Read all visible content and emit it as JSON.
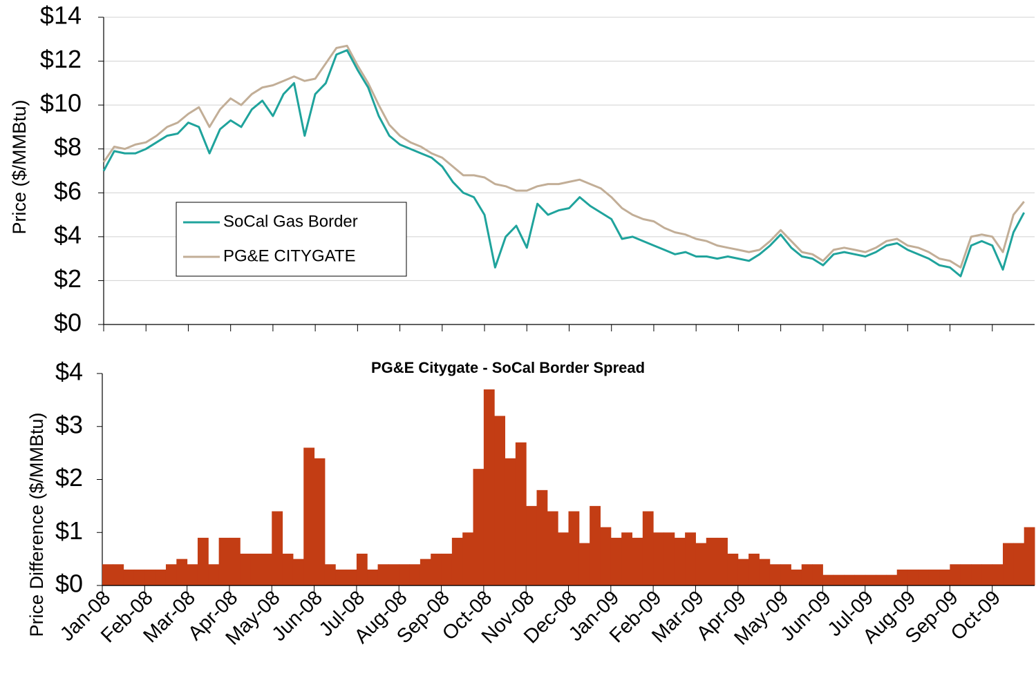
{
  "chart_data": [
    {
      "type": "line",
      "y_label": "Price ($/MMBtu)",
      "categories": [
        "Jan-08",
        null,
        null,
        null,
        "Feb-08",
        null,
        null,
        null,
        "Mar-08",
        null,
        null,
        null,
        "Apr-08",
        null,
        null,
        null,
        "May-08",
        null,
        null,
        null,
        "Jun-08",
        null,
        null,
        null,
        "Jul-08",
        null,
        null,
        null,
        "Aug-08",
        null,
        null,
        null,
        "Sep-08",
        null,
        null,
        null,
        "Oct-08",
        null,
        null,
        null,
        "Nov-08",
        null,
        null,
        null,
        "Dec-08",
        null,
        null,
        null,
        "Jan-09",
        null,
        null,
        null,
        "Feb-09",
        null,
        null,
        null,
        "Mar-09",
        null,
        null,
        null,
        "Apr-09",
        null,
        null,
        null,
        "May-09",
        null,
        null,
        null,
        "Jun-09",
        null,
        null,
        null,
        "Jul-09",
        null,
        null,
        null,
        "Aug-09",
        null,
        null,
        null,
        "Sep-09",
        null,
        null,
        null,
        "Oct-09",
        null,
        null,
        null
      ],
      "series": [
        {
          "name": "SoCal Gas Border",
          "color": "#1fa39c",
          "values": [
            7.0,
            7.9,
            7.8,
            7.8,
            8.0,
            8.3,
            8.6,
            8.7,
            9.2,
            9.0,
            7.8,
            8.9,
            9.3,
            9.0,
            9.8,
            10.2,
            9.5,
            10.5,
            11.0,
            8.6,
            10.5,
            11.0,
            12.3,
            12.5,
            11.6,
            10.8,
            9.5,
            8.6,
            8.2,
            8.0,
            7.8,
            7.6,
            7.2,
            6.5,
            6.0,
            5.8,
            5.0,
            2.6,
            4.0,
            4.5,
            3.5,
            5.5,
            5.0,
            5.2,
            5.3,
            5.8,
            5.4,
            5.1,
            4.8,
            3.9,
            4.0,
            3.8,
            3.6,
            3.4,
            3.2,
            3.3,
            3.1,
            3.1,
            3.0,
            3.1,
            3.0,
            2.9,
            3.2,
            3.6,
            4.1,
            3.5,
            3.1,
            3.0,
            2.7,
            3.2,
            3.3,
            3.2,
            3.1,
            3.3,
            3.6,
            3.7,
            3.4,
            3.2,
            3.0,
            2.7,
            2.6,
            2.2,
            3.6,
            3.8,
            3.6,
            2.5,
            4.2,
            5.1
          ]
        },
        {
          "name": "PG&E CITYGATE",
          "color": "#c2ae97",
          "values": [
            7.4,
            8.1,
            8.0,
            8.2,
            8.3,
            8.6,
            9.0,
            9.2,
            9.6,
            9.9,
            9.0,
            9.8,
            10.3,
            10.0,
            10.5,
            10.8,
            10.9,
            11.1,
            11.3,
            11.1,
            11.2,
            11.9,
            12.6,
            12.7,
            11.8,
            11.0,
            10.0,
            9.1,
            8.6,
            8.3,
            8.1,
            7.8,
            7.6,
            7.2,
            6.8,
            6.8,
            6.7,
            6.4,
            6.3,
            6.1,
            6.1,
            6.3,
            6.4,
            6.4,
            6.5,
            6.6,
            6.4,
            6.2,
            5.8,
            5.3,
            5.0,
            4.8,
            4.7,
            4.4,
            4.2,
            4.1,
            3.9,
            3.8,
            3.6,
            3.5,
            3.4,
            3.3,
            3.4,
            3.8,
            4.3,
            3.8,
            3.3,
            3.2,
            2.9,
            3.4,
            3.5,
            3.4,
            3.3,
            3.5,
            3.8,
            3.9,
            3.6,
            3.5,
            3.3,
            3.0,
            2.9,
            2.6,
            4.0,
            4.1,
            4.0,
            3.3,
            5.0,
            5.6
          ]
        }
      ],
      "ylim": [
        0,
        14
      ],
      "yticks": [
        {
          "value": 0,
          "label": "$0"
        },
        {
          "value": 2,
          "label": "$2"
        },
        {
          "value": 4,
          "label": "$4"
        },
        {
          "value": 6,
          "label": "$6"
        },
        {
          "value": 8,
          "label": "$8"
        },
        {
          "value": 10,
          "label": "$10"
        },
        {
          "value": 12,
          "label": "$12"
        },
        {
          "value": 14,
          "label": "$14"
        }
      ],
      "grid": true,
      "legend": "lower left"
    },
    {
      "type": "bar",
      "title": "PG&E Citygate - SoCal Border Spread",
      "y_label": "Price Difference ($/MMBtu)",
      "categories": [
        "Jan-08",
        null,
        null,
        null,
        "Feb-08",
        null,
        null,
        null,
        "Mar-08",
        null,
        null,
        null,
        "Apr-08",
        null,
        null,
        null,
        "May-08",
        null,
        null,
        null,
        "Jun-08",
        null,
        null,
        null,
        "Jul-08",
        null,
        null,
        null,
        "Aug-08",
        null,
        null,
        null,
        "Sep-08",
        null,
        null,
        null,
        "Oct-08",
        null,
        null,
        null,
        "Nov-08",
        null,
        null,
        null,
        "Dec-08",
        null,
        null,
        null,
        "Jan-09",
        null,
        null,
        null,
        "Feb-09",
        null,
        null,
        null,
        "Mar-09",
        null,
        null,
        null,
        "Apr-09",
        null,
        null,
        null,
        "May-09",
        null,
        null,
        null,
        "Jun-09",
        null,
        null,
        null,
        "Jul-09",
        null,
        null,
        null,
        "Aug-09",
        null,
        null,
        null,
        "Sep-09",
        null,
        null,
        null,
        "Oct-09",
        null,
        null,
        null
      ],
      "values": [
        0.4,
        0.4,
        0.3,
        0.3,
        0.3,
        0.3,
        0.4,
        0.5,
        0.4,
        0.9,
        0.4,
        0.9,
        0.9,
        0.6,
        0.6,
        0.6,
        1.4,
        0.6,
        0.5,
        2.6,
        2.4,
        0.4,
        0.3,
        0.3,
        0.6,
        0.3,
        0.4,
        0.4,
        0.4,
        0.4,
        0.5,
        0.6,
        0.6,
        0.9,
        1.0,
        2.2,
        3.7,
        3.2,
        2.4,
        2.7,
        1.5,
        1.8,
        1.4,
        1.0,
        1.4,
        0.8,
        1.5,
        1.1,
        0.9,
        1.0,
        0.9,
        1.4,
        1.0,
        1.0,
        0.9,
        1.0,
        0.8,
        0.9,
        0.9,
        0.6,
        0.5,
        0.6,
        0.5,
        0.4,
        0.4,
        0.3,
        0.4,
        0.4,
        0.2,
        0.2,
        0.2,
        0.2,
        0.2,
        0.2,
        0.2,
        0.3,
        0.3,
        0.3,
        0.3,
        0.3,
        0.4,
        0.4,
        0.4,
        0.4,
        0.4,
        0.8,
        0.8,
        1.1
      ],
      "color": "#c33d14",
      "ylim": [
        0,
        4
      ],
      "yticks": [
        {
          "value": 0,
          "label": "$0"
        },
        {
          "value": 1,
          "label": "$1"
        },
        {
          "value": 2,
          "label": "$2"
        },
        {
          "value": 3,
          "label": "$3"
        },
        {
          "value": 4,
          "label": "$4"
        }
      ],
      "grid": false
    }
  ]
}
